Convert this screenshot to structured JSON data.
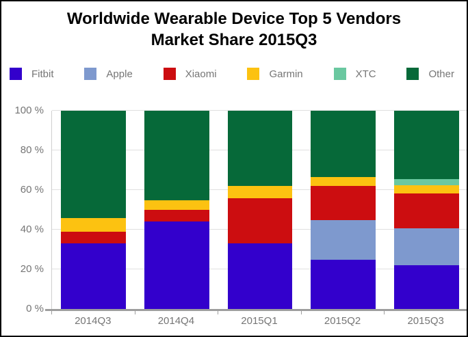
{
  "title": {
    "line1": "Worldwide Wearable Device Top 5 Vendors",
    "line2": "Market Share 2015Q3"
  },
  "colors": {
    "title_text": "#000000",
    "label_text": "#757575",
    "axis_line": "#9e9e9e",
    "grid_line": "#e0e0e0"
  },
  "chart_data": {
    "type": "bar",
    "stacked": true,
    "title": "Worldwide Wearable Device Top 5 Vendors Market Share 2015Q3",
    "categories": [
      "2014Q3",
      "2014Q4",
      "2015Q1",
      "2015Q2",
      "2015Q3"
    ],
    "series": [
      {
        "name": "Fitbit",
        "color": "#3300CC",
        "values": [
          33,
          44,
          33,
          25,
          22.2
        ]
      },
      {
        "name": "Apple",
        "color": "#7E99CE",
        "values": [
          0,
          0,
          0,
          20,
          18.6
        ]
      },
      {
        "name": "Xiaomi",
        "color": "#CC0D10",
        "values": [
          6,
          6,
          23,
          17,
          17.4
        ]
      },
      {
        "name": "Garmin",
        "color": "#FCC211",
        "values": [
          7,
          5,
          6,
          4.5,
          4.1
        ]
      },
      {
        "name": "XTC",
        "color": "#6AC8A0",
        "values": [
          0,
          0,
          0,
          0,
          3.3
        ]
      },
      {
        "name": "Other",
        "color": "#066939",
        "values": [
          54,
          45,
          38,
          33.5,
          34.4
        ]
      }
    ],
    "xlabel": "",
    "ylabel": "",
    "y_ticks": [
      "0 %",
      "20 %",
      "40 %",
      "60 %",
      "80 %",
      "100 %"
    ],
    "ylim": [
      0,
      100
    ],
    "grid": true,
    "legend_position": "top",
    "value_unit": "percent of market share"
  }
}
